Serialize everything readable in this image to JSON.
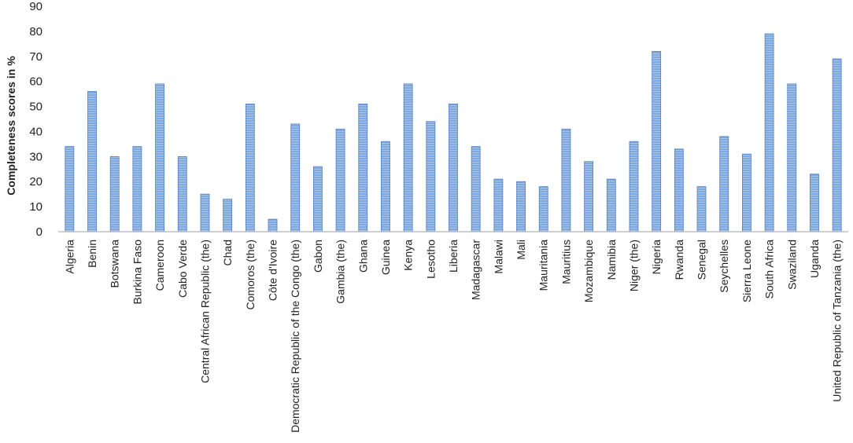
{
  "chart_data": {
    "type": "bar",
    "title": "",
    "xlabel": "",
    "ylabel": "Completeness scores in %",
    "ylim": [
      0,
      90
    ],
    "yticks": [
      0,
      10,
      20,
      30,
      40,
      50,
      60,
      70,
      80,
      90
    ],
    "grid": false,
    "legend": "none",
    "bar_color": "#7fa8dc",
    "bar_edge_color": "#4f7fc0",
    "categories": [
      "Algeria",
      "Benin",
      "Botswana",
      "Burkina Faso",
      "Cameroon",
      "Cabo Verde",
      "Central African Republic (the)",
      "Chad",
      "Comoros (the)",
      "Côte d'Ivoire",
      "Democratic Republic of the Congo (the)",
      "Gabon",
      "Gambia (the)",
      "Ghana",
      "Guinea",
      "Kenya",
      "Lesotho",
      "Liberia",
      "Madagascar",
      "Malawi",
      "Mali",
      "Mauritania",
      "Mauritius",
      "Mozambique",
      "Namibia",
      "Niger (the)",
      "Nigeria",
      "Rwanda",
      "Senegal",
      "Seychelles",
      "Sierra Leone",
      "South Africa",
      "Swaziland",
      "Uganda",
      "United Republic of Tanzania (the)"
    ],
    "values": [
      34,
      56,
      30,
      34,
      59,
      30,
      15,
      13,
      51,
      5,
      43,
      26,
      41,
      51,
      36,
      59,
      44,
      51,
      34,
      21,
      20,
      18,
      41,
      28,
      21,
      36,
      72,
      33,
      18,
      38,
      31,
      79,
      59,
      23,
      69
    ]
  }
}
